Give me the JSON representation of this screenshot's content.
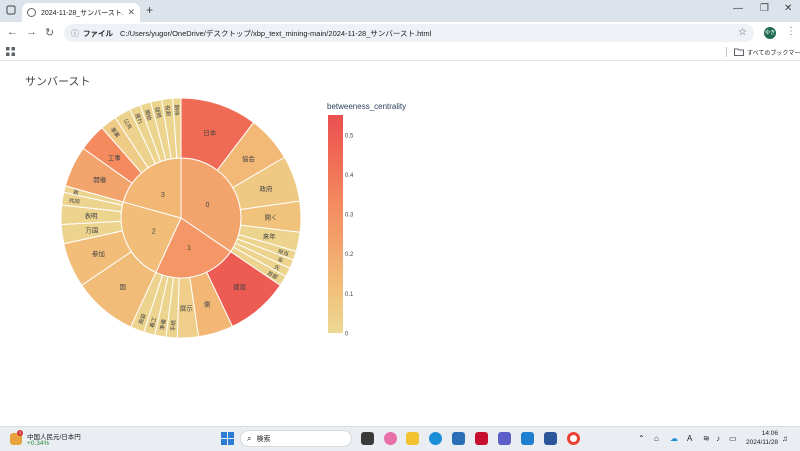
{
  "browser": {
    "tab_title": "2024-11-28_サンバースト.html",
    "address_label": "ファイル",
    "address_url": "C:/Users/yugor/OneDrive/デスクトップ/xbp_text_mining-main/2024-11-28_サンバースト.html",
    "bookmarks_label": "すべてのブックマーク",
    "profile_initials": "ゆき"
  },
  "page": {
    "title": "サンバースト"
  },
  "chart_data": {
    "type": "sunburst",
    "title": "サンバースト",
    "colorscale": {
      "title": "betweeness_centrality",
      "min": 0,
      "max": 0.55,
      "ticks": [
        0,
        0.1,
        0.2,
        0.3,
        0.4,
        0.5
      ],
      "colors": [
        "#ebd994",
        "#f1c07a",
        "#f3a46d",
        "#f48a5e",
        "#f06b56",
        "#eb4f50"
      ]
    },
    "nodes": [
      {
        "id": "0",
        "label": "0",
        "parent": "",
        "value": 20,
        "color_value": 0.22
      },
      {
        "id": "1",
        "label": "1",
        "parent": "",
        "value": 13,
        "color_value": 0.28
      },
      {
        "id": "2",
        "label": "2",
        "parent": "",
        "value": 13,
        "color_value": 0.12
      },
      {
        "id": "3",
        "label": "3",
        "parent": "",
        "value": 12,
        "color_value": 0.15
      },
      {
        "id": "0-日本",
        "label": "日本",
        "parent": "0",
        "value": 6,
        "color_value": 0.44
      },
      {
        "id": "0-協会",
        "label": "協会",
        "parent": "0",
        "value": 3.6,
        "color_value": 0.14
      },
      {
        "id": "0-政府",
        "label": "政府",
        "parent": "0",
        "value": 3.6,
        "color_value": 0.07
      },
      {
        "id": "0-開く",
        "label": "開く",
        "parent": "0",
        "value": 2.4,
        "color_value": 0.1
      },
      {
        "id": "0-来年",
        "label": "来年",
        "parent": "0",
        "value": 1.5,
        "color_value": 0.02
      },
      {
        "id": "0-担当",
        "label": "担当",
        "parent": "0",
        "value": 0.7,
        "color_value": 0.02
      },
      {
        "id": "0-年",
        "label": "年",
        "parent": "0",
        "value": 0.7,
        "color_value": 0.02
      },
      {
        "id": "0-氏",
        "label": "氏",
        "parent": "0",
        "value": 0.7,
        "color_value": 0.02
      },
      {
        "id": "0-首都",
        "label": "首都",
        "parent": "0",
        "value": 0.8,
        "color_value": 0.02
      },
      {
        "id": "2-国",
        "label": "国",
        "parent": "2",
        "value": 5,
        "color_value": 0.13
      },
      {
        "id": "2-参加",
        "label": "参加",
        "parent": "2",
        "value": 3.5,
        "color_value": 0.12
      },
      {
        "id": "2-万国",
        "label": "万国",
        "parent": "2",
        "value": 1.5,
        "color_value": 0.02
      },
      {
        "id": "2-表明",
        "label": "表明",
        "parent": "2",
        "value": 1.5,
        "color_value": 0.02
      },
      {
        "id": "2-共同",
        "label": "共同",
        "parent": "2",
        "value": 1.0,
        "color_value": 0.02
      },
      {
        "id": "2-数",
        "label": "数",
        "parent": "2",
        "value": 0.5,
        "color_value": 0.02
      },
      {
        "id": "1-建設",
        "label": "建設",
        "parent": "1",
        "value": 4.5,
        "color_value": 0.5
      },
      {
        "id": "1-側",
        "label": "側",
        "parent": "1",
        "value": 2.5,
        "color_value": 0.15
      },
      {
        "id": "1-展示",
        "label": "展示",
        "parent": "1",
        "value": 1.5,
        "color_value": 0.05
      },
      {
        "id": "1-手続",
        "label": "手続",
        "parent": "1",
        "value": 0.8,
        "color_value": 0.02
      },
      {
        "id": "1-準備",
        "label": "準備",
        "parent": "1",
        "value": 0.8,
        "color_value": 0.02
      },
      {
        "id": "1-着工",
        "label": "着工",
        "parent": "1",
        "value": 0.8,
        "color_value": 0.02
      },
      {
        "id": "1-施設",
        "label": "施設",
        "parent": "1",
        "value": 1.0,
        "color_value": 0.02
      },
      {
        "id": "3-開催",
        "label": "開催",
        "parent": "3",
        "value": 3.0,
        "color_value": 0.22
      },
      {
        "id": "3-工事",
        "label": "工事",
        "parent": "3",
        "value": 2.0,
        "color_value": 0.33
      },
      {
        "id": "3-事業",
        "label": "事業",
        "parent": "3",
        "value": 1.2,
        "color_value": 0.06
      },
      {
        "id": "3-公共",
        "label": "公共",
        "parent": "3",
        "value": 1.2,
        "color_value": 0.03
      },
      {
        "id": "3-遅れ",
        "label": "遅れ",
        "parent": "3",
        "value": 0.8,
        "color_value": 0.02
      },
      {
        "id": "3-開始",
        "label": "開始",
        "parent": "3",
        "value": 0.8,
        "color_value": 0.02
      },
      {
        "id": "3-疑問",
        "label": "疑問",
        "parent": "3",
        "value": 0.8,
        "color_value": 0.02
      },
      {
        "id": "3-役割",
        "label": "役割",
        "parent": "3",
        "value": 0.8,
        "color_value": 0.02
      },
      {
        "id": "3-期待",
        "label": "期待",
        "parent": "3",
        "value": 0.6,
        "color_value": 0.02
      }
    ]
  },
  "taskbar": {
    "widget_title": "中国人民元/日本円",
    "widget_value": "+0.34%",
    "widget_badge": "1",
    "search_placeholder": "検索",
    "time": "14:06",
    "date": "2024/11/28"
  }
}
